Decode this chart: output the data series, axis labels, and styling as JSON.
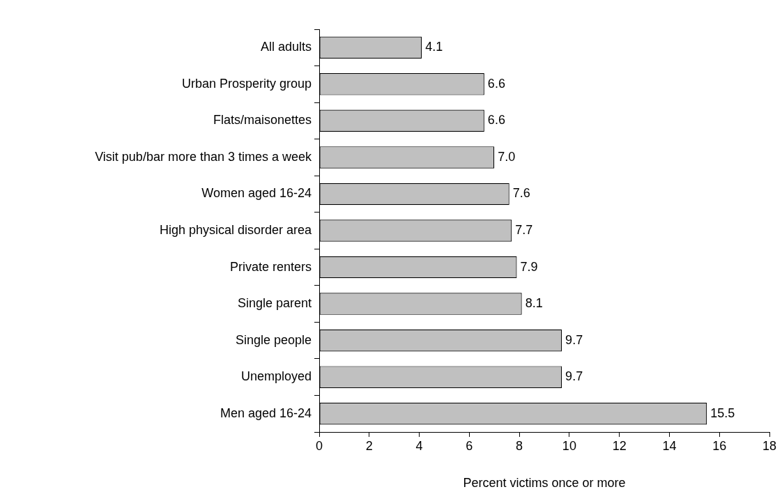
{
  "chart_data": {
    "type": "bar",
    "orientation": "horizontal",
    "xlabel": "Percent victims once or more",
    "categories": [
      "All adults",
      "Urban Prosperity group",
      "Flats/maisonettes",
      "Visit pub/bar more than 3 times a week",
      "Women aged 16-24",
      "High physical disorder area",
      "Private renters",
      "Single parent",
      "Single people",
      "Unemployed",
      "Men aged 16-24"
    ],
    "values": [
      4.1,
      6.6,
      6.6,
      7.0,
      7.6,
      7.7,
      7.9,
      8.1,
      9.7,
      9.7,
      15.5
    ],
    "value_labels": [
      "4.1",
      "6.6",
      "6.6",
      "7.0",
      "7.6",
      "7.7",
      "7.9",
      "8.1",
      "9.7",
      "9.7",
      "15.5"
    ],
    "color": "#c0c0c0",
    "xlim": [
      0,
      18
    ],
    "xticks": [
      0,
      2,
      4,
      6,
      8,
      10,
      12,
      14,
      16,
      18
    ],
    "legend": false
  }
}
